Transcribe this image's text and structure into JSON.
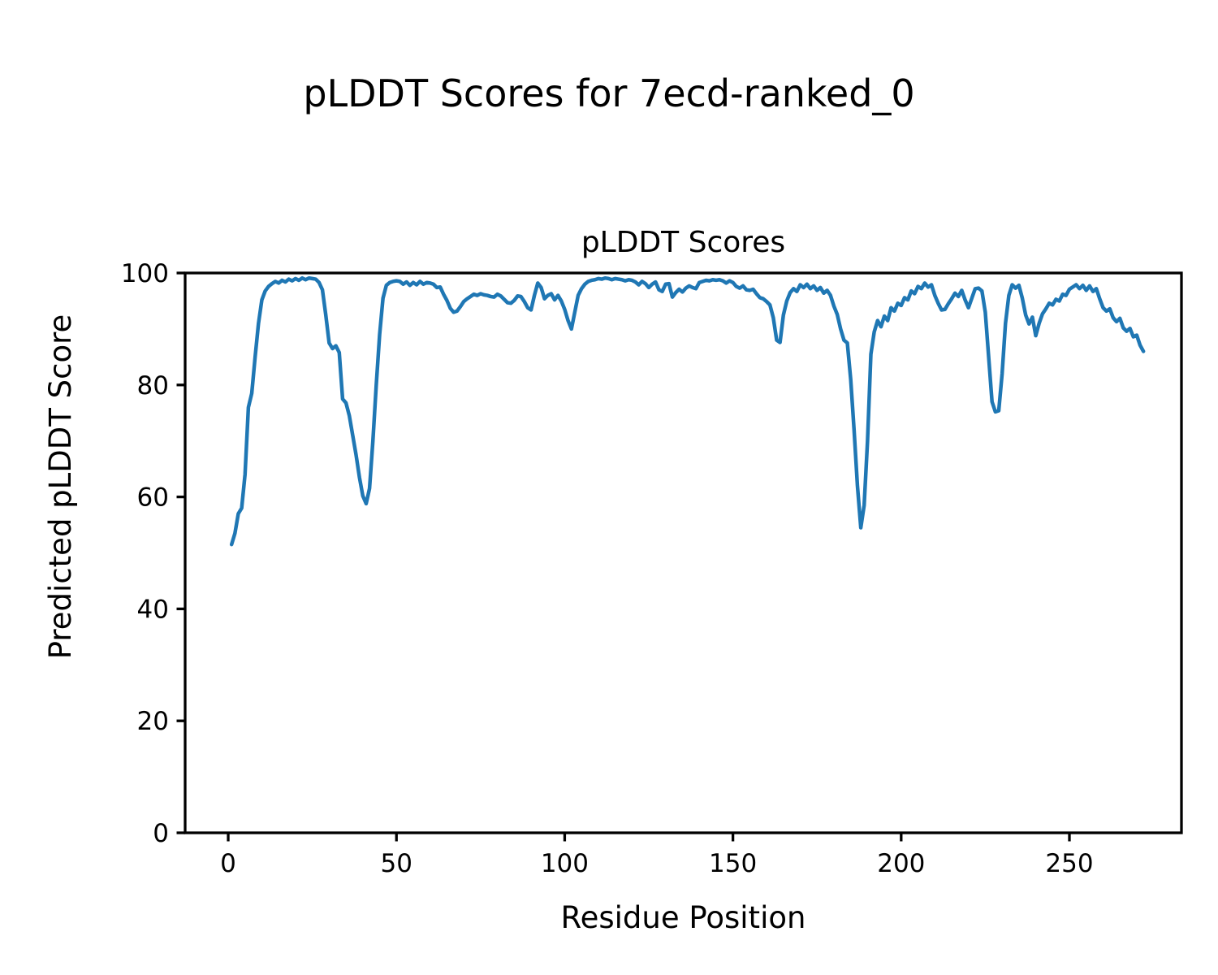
{
  "figure": {
    "suptitle": "pLDDT Scores for 7ecd-ranked_0",
    "background": "#ffffff",
    "text_color": "#000000"
  },
  "chart_data": {
    "type": "line",
    "title": "pLDDT Scores",
    "xlabel": "Residue Position",
    "ylabel": "Predicted pLDDT Score",
    "legend": "none",
    "grid": false,
    "line_color": "#1f77b4",
    "line_width": 4.5,
    "xlim": [
      -12.8,
      283.3
    ],
    "ylim": [
      0,
      100
    ],
    "xticks": [
      0,
      50,
      100,
      150,
      200,
      250
    ],
    "yticks": [
      0,
      20,
      40,
      60,
      80,
      100
    ],
    "x_start": 1,
    "x_step": 1,
    "values": [
      51.5,
      53.5,
      57.0,
      58.0,
      64.0,
      76.0,
      78.5,
      85.0,
      91.0,
      95.2,
      96.8,
      97.6,
      98.1,
      98.5,
      98.2,
      98.7,
      98.4,
      98.9,
      98.6,
      99.0,
      98.7,
      99.1,
      98.8,
      99.1,
      99.0,
      98.9,
      98.3,
      97.0,
      92.5,
      87.5,
      86.5,
      87.0,
      85.8,
      77.5,
      76.8,
      74.5,
      71.0,
      67.5,
      63.5,
      60.2,
      58.8,
      61.5,
      70.0,
      80.0,
      89.0,
      95.5,
      97.8,
      98.3,
      98.5,
      98.6,
      98.5,
      98.0,
      98.4,
      97.8,
      98.3,
      97.9,
      98.5,
      98.0,
      98.3,
      98.2,
      98.0,
      97.4,
      97.5,
      96.2,
      95.1,
      93.7,
      93.0,
      93.2,
      94.0,
      94.9,
      95.4,
      95.8,
      96.2,
      96.0,
      96.3,
      96.1,
      96.0,
      95.8,
      95.7,
      96.2,
      95.9,
      95.3,
      94.7,
      94.6,
      95.1,
      95.9,
      95.8,
      94.9,
      93.8,
      93.4,
      96.0,
      98.2,
      97.4,
      95.4,
      96.0,
      96.3,
      95.2,
      96.0,
      95.0,
      93.5,
      91.5,
      90.0,
      93.0,
      96.0,
      97.2,
      98.0,
      98.5,
      98.7,
      98.8,
      99.0,
      98.9,
      99.1,
      99.0,
      98.8,
      99.0,
      98.9,
      98.8,
      98.6,
      98.8,
      98.7,
      98.4,
      97.9,
      98.5,
      98.1,
      97.4,
      98.0,
      98.4,
      97.0,
      96.7,
      98.0,
      98.1,
      95.7,
      96.5,
      97.1,
      96.6,
      97.3,
      97.7,
      97.4,
      97.2,
      98.3,
      98.5,
      98.7,
      98.6,
      98.8,
      98.7,
      98.8,
      98.6,
      98.2,
      98.6,
      98.3,
      97.6,
      97.3,
      97.7,
      97.0,
      96.9,
      97.1,
      96.3,
      95.6,
      95.4,
      94.9,
      94.3,
      92.0,
      88.0,
      87.6,
      92.5,
      95.0,
      96.5,
      97.2,
      96.7,
      97.9,
      97.4,
      98.0,
      97.2,
      97.7,
      96.9,
      97.4,
      96.4,
      96.9,
      96.0,
      94.1,
      92.6,
      90.0,
      88.0,
      87.5,
      81.0,
      72.0,
      62.0,
      54.5,
      58.5,
      70.0,
      85.5,
      89.5,
      91.5,
      90.4,
      92.3,
      91.5,
      93.8,
      93.2,
      94.6,
      94.2,
      95.6,
      95.2,
      96.8,
      96.3,
      97.6,
      97.2,
      98.2,
      97.5,
      97.9,
      96.0,
      94.6,
      93.4,
      93.5,
      94.5,
      95.4,
      96.4,
      95.8,
      96.9,
      95.2,
      93.8,
      95.5,
      97.2,
      97.3,
      96.8,
      93.0,
      85.0,
      77.0,
      75.2,
      75.4,
      82.0,
      91.0,
      96.0,
      97.9,
      97.3,
      97.8,
      95.5,
      92.5,
      90.9,
      92.1,
      88.8,
      91.0,
      92.7,
      93.6,
      94.6,
      94.3,
      95.3,
      95.0,
      96.2,
      96.0,
      97.1,
      97.5,
      97.9,
      97.2,
      97.8,
      96.9,
      97.7,
      96.7,
      97.2,
      95.4,
      93.8,
      93.2,
      93.6,
      92.0,
      91.3,
      91.9,
      90.2,
      89.6,
      90.1,
      88.6,
      88.9,
      87.1,
      86.0
    ]
  }
}
